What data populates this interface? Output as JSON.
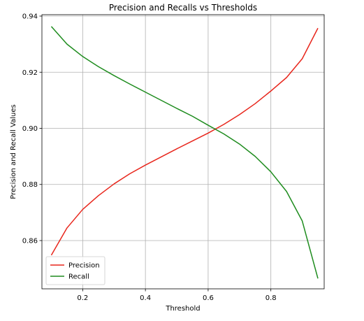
{
  "chart_data": {
    "type": "line",
    "title": "Precision and Recalls vs Thresholds",
    "xlabel": "Threshold",
    "ylabel": "Precision and Recall Values",
    "xlim": [
      0.07,
      0.97
    ],
    "ylim": [
      0.8428,
      0.9405
    ],
    "grid": true,
    "legend_position": "lower-left",
    "x": [
      0.1,
      0.15,
      0.2,
      0.25,
      0.3,
      0.35,
      0.4,
      0.45,
      0.5,
      0.55,
      0.6,
      0.65,
      0.7,
      0.75,
      0.8,
      0.85,
      0.9,
      0.95
    ],
    "xticks": [
      {
        "value": 0.2,
        "label": "0.2"
      },
      {
        "value": 0.4,
        "label": "0.4"
      },
      {
        "value": 0.6,
        "label": "0.6"
      },
      {
        "value": 0.8,
        "label": "0.8"
      }
    ],
    "yticks": [
      {
        "value": 0.86,
        "label": "0.86"
      },
      {
        "value": 0.88,
        "label": "0.88"
      },
      {
        "value": 0.9,
        "label": "0.90"
      },
      {
        "value": 0.92,
        "label": "0.92"
      },
      {
        "value": 0.94,
        "label": "0.94"
      }
    ],
    "series": [
      {
        "name": "Precision",
        "color": "#e8261c",
        "values": [
          0.8548,
          0.8645,
          0.8711,
          0.876,
          0.8802,
          0.8838,
          0.8869,
          0.8898,
          0.8927,
          0.8955,
          0.8983,
          0.9014,
          0.9049,
          0.9088,
          0.9133,
          0.9181,
          0.9248,
          0.9357
        ]
      },
      {
        "name": "Recall",
        "color": "#1e8c1e",
        "values": [
          0.9363,
          0.93,
          0.9256,
          0.922,
          0.9188,
          0.9158,
          0.9129,
          0.91,
          0.9071,
          0.9043,
          0.9011,
          0.898,
          0.8944,
          0.89,
          0.8845,
          0.8775,
          0.867,
          0.8465
        ]
      }
    ]
  }
}
